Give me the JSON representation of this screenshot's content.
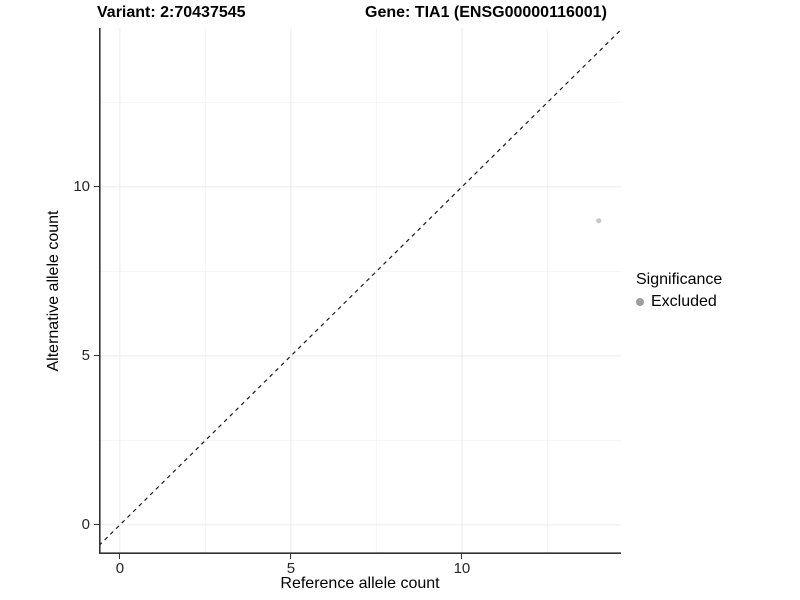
{
  "figure": {
    "title_left": "Variant: 2:70437545",
    "title_right": "Gene: TIA1 (ENSG00000116001)"
  },
  "chart_data": {
    "type": "scatter",
    "title": "Variant: 2:70437545 — Gene: TIA1 (ENSG00000116001)",
    "xlabel": "Reference allele count",
    "ylabel": "Alternative allele count",
    "xlim": [
      -0.61,
      14.65
    ],
    "ylim": [
      -0.86,
      14.7
    ],
    "xticks": [
      0,
      5,
      10
    ],
    "yticks": [
      0,
      5,
      10
    ],
    "minor_ticks_x": [
      2.5,
      7.5,
      12.5
    ],
    "minor_ticks_y": [
      2.5,
      7.5,
      12.5
    ],
    "grid": "major and minor, light gray, white background",
    "points": [
      {
        "x": 14,
        "y": 9,
        "series": "Excluded"
      }
    ],
    "identity_line": {
      "equation": "y = x",
      "style": "dashed",
      "color": "#1a1a1a"
    },
    "legend": {
      "title": "Significance",
      "position": "right",
      "entries": [
        {
          "label": "Excluded",
          "color": "#9e9e9e"
        }
      ]
    },
    "style": {
      "point_color": "#c8c8c8",
      "axis_line_color": "#333333",
      "grid_major_color": "#ebebeb",
      "grid_minor_color": "#f5f5f5"
    }
  }
}
